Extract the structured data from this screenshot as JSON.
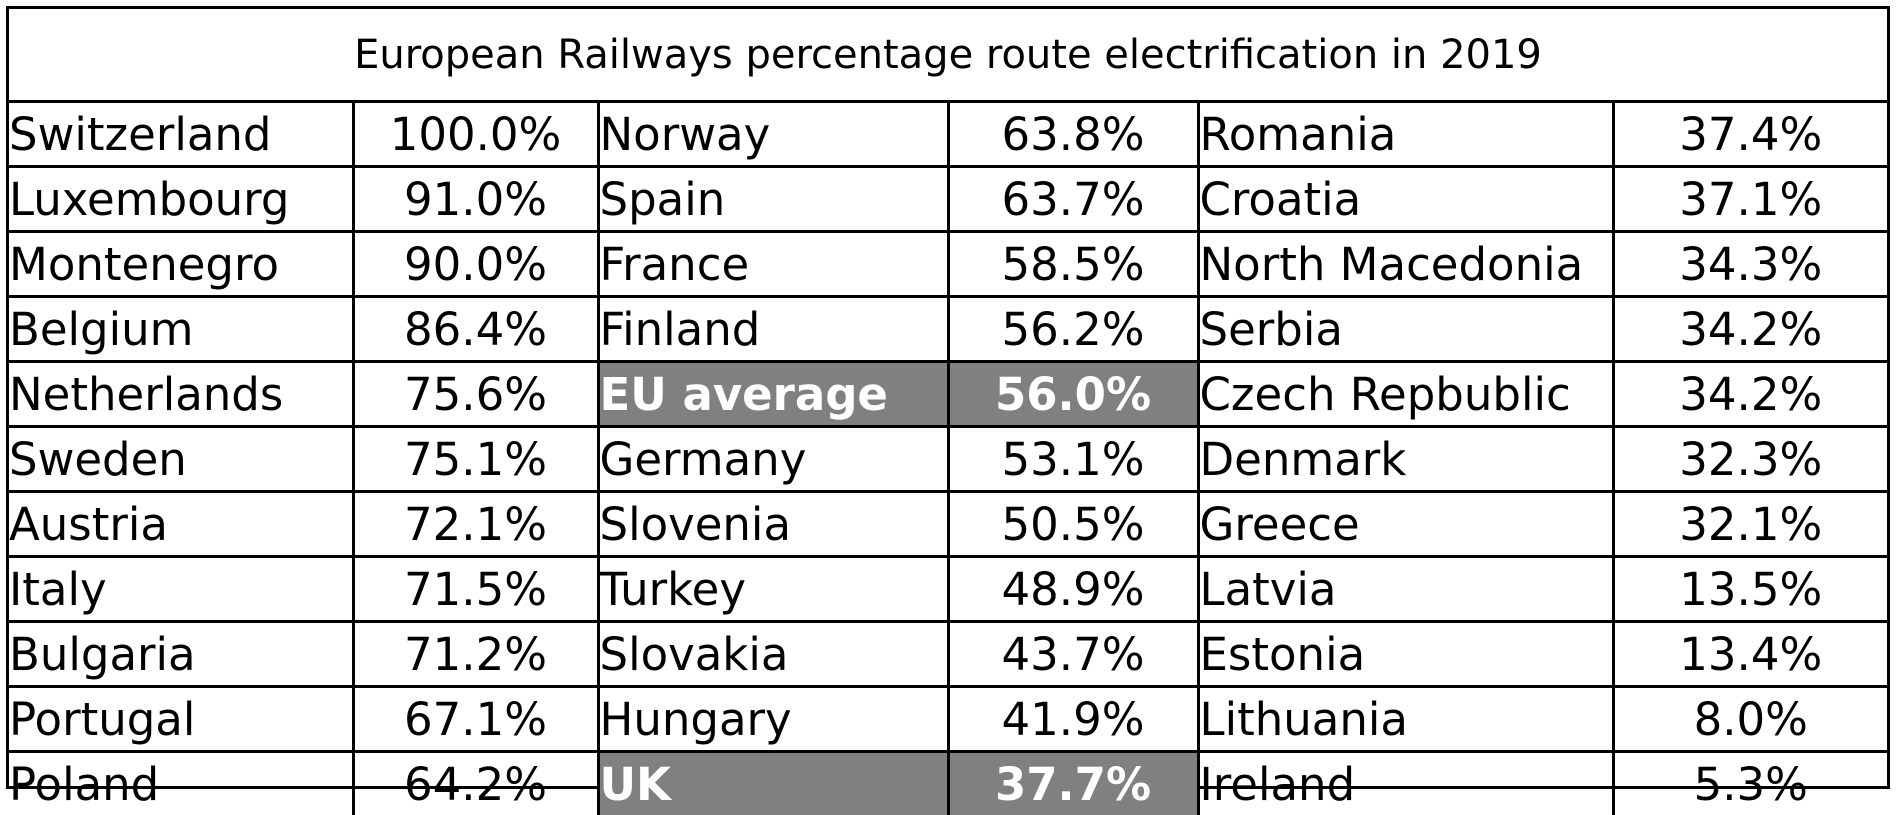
{
  "chart_data": {
    "type": "table",
    "title": "European Railways percentage route electrification in 2019",
    "highlight_color": "#808080",
    "highlighted_rows": [
      "EU average",
      "UK"
    ],
    "columns": [
      [
        {
          "country": "Switzerland",
          "value": "100.0%"
        },
        {
          "country": "Luxembourg",
          "value": "91.0%"
        },
        {
          "country": "Montenegro",
          "value": "90.0%"
        },
        {
          "country": "Belgium",
          "value": "86.4%"
        },
        {
          "country": "Netherlands",
          "value": "75.6%"
        },
        {
          "country": "Sweden",
          "value": "75.1%"
        },
        {
          "country": "Austria",
          "value": "72.1%"
        },
        {
          "country": "Italy",
          "value": "71.5%"
        },
        {
          "country": "Bulgaria",
          "value": "71.2%"
        },
        {
          "country": "Portugal",
          "value": "67.1%"
        },
        {
          "country": "Poland",
          "value": "64.2%"
        }
      ],
      [
        {
          "country": "Norway",
          "value": "63.8%"
        },
        {
          "country": "Spain",
          "value": "63.7%"
        },
        {
          "country": "France",
          "value": "58.5%"
        },
        {
          "country": "Finland",
          "value": "56.2%"
        },
        {
          "country": "EU average",
          "value": "56.0%",
          "highlight": true
        },
        {
          "country": "Germany",
          "value": "53.1%"
        },
        {
          "country": "Slovenia",
          "value": "50.5%"
        },
        {
          "country": "Turkey",
          "value": "48.9%"
        },
        {
          "country": "Slovakia",
          "value": "43.7%"
        },
        {
          "country": "Hungary",
          "value": "41.9%"
        },
        {
          "country": "UK",
          "value": "37.7%",
          "highlight": true
        }
      ],
      [
        {
          "country": "Romania",
          "value": "37.4%"
        },
        {
          "country": "Croatia",
          "value": "37.1%"
        },
        {
          "country": "North Macedonia",
          "value": "34.3%"
        },
        {
          "country": "Serbia",
          "value": "34.2%"
        },
        {
          "country": "Czech Repbublic",
          "value": "34.2%"
        },
        {
          "country": "Denmark",
          "value": "32.3%"
        },
        {
          "country": "Greece",
          "value": "32.1%"
        },
        {
          "country": "Latvia",
          "value": "13.5%"
        },
        {
          "country": "Estonia",
          "value": "13.4%"
        },
        {
          "country": "Lithuania",
          "value": "8.0%"
        },
        {
          "country": "Ireland",
          "value": "5.3%"
        }
      ]
    ]
  }
}
